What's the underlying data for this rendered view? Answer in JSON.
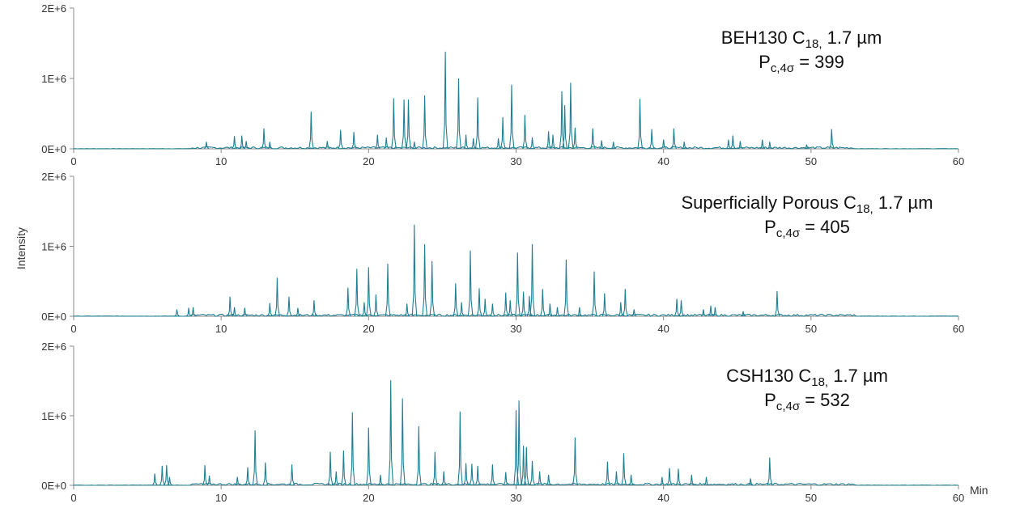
{
  "colors": {
    "trace": "#1f7f93",
    "axis": "#8a8a8a"
  },
  "chart_data": {
    "type": "line",
    "shared_y_label": "Intensity",
    "x_unit_label": "Min",
    "panels": [
      {
        "title_main": "BEH130 C",
        "title_sub": "18,",
        "title_tail": " 1.7 µm",
        "pc_sub": "c,4σ",
        "pc_label": "P",
        "pc_value": "= 399",
        "xlim": [
          0,
          60
        ],
        "ylim": [
          0,
          2000000
        ],
        "x_ticks": [
          "0",
          "10",
          "20",
          "30",
          "40",
          "50",
          "60"
        ],
        "y_ticks": [
          "0E+0",
          "1E+6",
          "2E+6"
        ],
        "peaks": [
          [
            9.0,
            100000
          ],
          [
            10.9,
            180000
          ],
          [
            11.4,
            190000
          ],
          [
            11.7,
            110000
          ],
          [
            12.9,
            290000
          ],
          [
            13.3,
            100000
          ],
          [
            16.1,
            530000
          ],
          [
            17.2,
            110000
          ],
          [
            18.1,
            270000
          ],
          [
            19.0,
            240000
          ],
          [
            20.6,
            200000
          ],
          [
            21.2,
            160000
          ],
          [
            21.7,
            720000
          ],
          [
            22.4,
            700000
          ],
          [
            22.7,
            700000
          ],
          [
            23.1,
            100000
          ],
          [
            23.8,
            760000
          ],
          [
            25.2,
            1380000
          ],
          [
            26.1,
            1000000
          ],
          [
            26.6,
            200000
          ],
          [
            27.1,
            150000
          ],
          [
            27.4,
            730000
          ],
          [
            28.8,
            150000
          ],
          [
            29.1,
            450000
          ],
          [
            29.7,
            910000
          ],
          [
            30.6,
            480000
          ],
          [
            31.1,
            160000
          ],
          [
            32.2,
            250000
          ],
          [
            32.5,
            200000
          ],
          [
            33.1,
            820000
          ],
          [
            33.3,
            620000
          ],
          [
            33.7,
            940000
          ],
          [
            34.0,
            300000
          ],
          [
            35.2,
            290000
          ],
          [
            35.8,
            120000
          ],
          [
            36.6,
            100000
          ],
          [
            38.4,
            710000
          ],
          [
            39.2,
            280000
          ],
          [
            40.0,
            130000
          ],
          [
            40.7,
            290000
          ],
          [
            41.4,
            100000
          ],
          [
            44.4,
            130000
          ],
          [
            44.7,
            190000
          ],
          [
            45.2,
            110000
          ],
          [
            46.7,
            130000
          ],
          [
            47.2,
            100000
          ],
          [
            49.7,
            60000
          ],
          [
            51.4,
            280000
          ]
        ]
      },
      {
        "title_main": "Superficially Porous C",
        "title_sub": "18,",
        "title_tail": " 1.7 µm",
        "pc_sub": "c,4σ",
        "pc_label": "P",
        "pc_value": "= 405",
        "xlim": [
          0,
          60
        ],
        "ylim": [
          0,
          2000000
        ],
        "x_ticks": [
          "0",
          "10",
          "20",
          "30",
          "40",
          "50",
          "60"
        ],
        "y_ticks": [
          "0E+0",
          "1E+6",
          "2E+6"
        ],
        "peaks": [
          [
            7.0,
            100000
          ],
          [
            7.8,
            120000
          ],
          [
            8.1,
            130000
          ],
          [
            10.6,
            280000
          ],
          [
            10.9,
            130000
          ],
          [
            11.6,
            120000
          ],
          [
            13.3,
            190000
          ],
          [
            13.8,
            550000
          ],
          [
            14.6,
            280000
          ],
          [
            15.2,
            120000
          ],
          [
            16.3,
            230000
          ],
          [
            18.6,
            410000
          ],
          [
            19.2,
            680000
          ],
          [
            19.7,
            200000
          ],
          [
            20.0,
            700000
          ],
          [
            20.5,
            310000
          ],
          [
            21.3,
            750000
          ],
          [
            22.6,
            180000
          ],
          [
            23.1,
            1310000
          ],
          [
            23.8,
            1030000
          ],
          [
            24.3,
            790000
          ],
          [
            25.9,
            470000
          ],
          [
            26.3,
            200000
          ],
          [
            26.9,
            940000
          ],
          [
            27.5,
            400000
          ],
          [
            27.9,
            250000
          ],
          [
            28.4,
            180000
          ],
          [
            29.3,
            340000
          ],
          [
            29.6,
            230000
          ],
          [
            30.1,
            910000
          ],
          [
            30.5,
            350000
          ],
          [
            30.9,
            290000
          ],
          [
            31.1,
            1030000
          ],
          [
            31.8,
            390000
          ],
          [
            32.3,
            180000
          ],
          [
            32.8,
            130000
          ],
          [
            33.4,
            810000
          ],
          [
            34.3,
            130000
          ],
          [
            35.3,
            640000
          ],
          [
            36.0,
            330000
          ],
          [
            37.1,
            200000
          ],
          [
            37.4,
            390000
          ],
          [
            38.0,
            100000
          ],
          [
            40.9,
            250000
          ],
          [
            41.2,
            230000
          ],
          [
            42.7,
            100000
          ],
          [
            43.2,
            150000
          ],
          [
            43.5,
            130000
          ],
          [
            45.4,
            70000
          ],
          [
            47.7,
            360000
          ]
        ]
      },
      {
        "title_main": "CSH130 C",
        "title_sub": "18,",
        "title_tail": " 1.7 µm",
        "pc_sub": "c,4σ",
        "pc_label": "P",
        "pc_value": "= 532",
        "xlim": [
          0,
          60
        ],
        "ylim": [
          0,
          2000000
        ],
        "x_ticks": [
          "0",
          "10",
          "20",
          "30",
          "40",
          "50",
          "60"
        ],
        "y_ticks": [
          "0E+0",
          "1E+6",
          "2E+6"
        ],
        "peaks": [
          [
            5.5,
            170000
          ],
          [
            6.0,
            280000
          ],
          [
            6.3,
            290000
          ],
          [
            6.5,
            120000
          ],
          [
            8.9,
            290000
          ],
          [
            9.2,
            140000
          ],
          [
            11.1,
            120000
          ],
          [
            11.8,
            260000
          ],
          [
            12.3,
            790000
          ],
          [
            13.0,
            330000
          ],
          [
            14.8,
            300000
          ],
          [
            17.4,
            480000
          ],
          [
            17.8,
            200000
          ],
          [
            18.3,
            500000
          ],
          [
            18.9,
            1050000
          ],
          [
            20.0,
            830000
          ],
          [
            20.8,
            150000
          ],
          [
            21.5,
            1510000
          ],
          [
            22.3,
            1250000
          ],
          [
            23.4,
            850000
          ],
          [
            24.5,
            480000
          ],
          [
            25.1,
            200000
          ],
          [
            26.2,
            1060000
          ],
          [
            26.6,
            320000
          ],
          [
            27.0,
            310000
          ],
          [
            27.4,
            280000
          ],
          [
            28.4,
            300000
          ],
          [
            29.3,
            190000
          ],
          [
            30.0,
            1080000
          ],
          [
            30.2,
            1220000
          ],
          [
            30.5,
            570000
          ],
          [
            30.7,
            550000
          ],
          [
            31.1,
            350000
          ],
          [
            31.6,
            200000
          ],
          [
            32.2,
            150000
          ],
          [
            34.0,
            690000
          ],
          [
            36.2,
            340000
          ],
          [
            36.8,
            200000
          ],
          [
            37.3,
            460000
          ],
          [
            37.8,
            150000
          ],
          [
            39.9,
            120000
          ],
          [
            40.4,
            250000
          ],
          [
            41.0,
            240000
          ],
          [
            41.9,
            150000
          ],
          [
            42.9,
            120000
          ],
          [
            45.9,
            100000
          ],
          [
            47.2,
            400000
          ]
        ]
      }
    ]
  }
}
